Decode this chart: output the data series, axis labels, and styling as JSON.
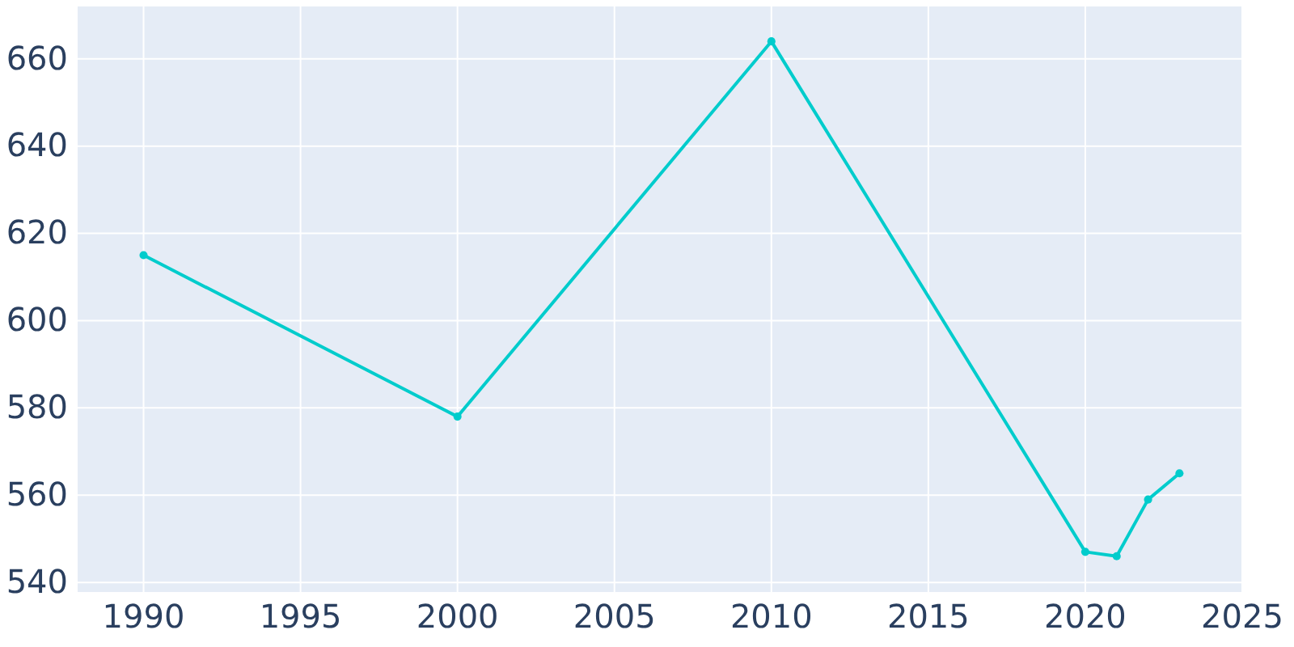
{
  "chart_data": {
    "type": "line",
    "x": [
      1990,
      2000,
      2010,
      2020,
      2021,
      2022,
      2023
    ],
    "series": [
      {
        "color": "#00cccc",
        "values": [
          615,
          578,
          664,
          547,
          546,
          559,
          565
        ]
      }
    ],
    "xlim": [
      1987.9,
      2025
    ],
    "xticks": [
      1990,
      1995,
      2000,
      2005,
      2010,
      2015,
      2020,
      2025
    ],
    "ylim": [
      537.8,
      672
    ],
    "yticks": [
      540,
      560,
      580,
      600,
      620,
      640,
      660
    ],
    "grid": true,
    "marker": "circle",
    "line_style": "solid"
  }
}
